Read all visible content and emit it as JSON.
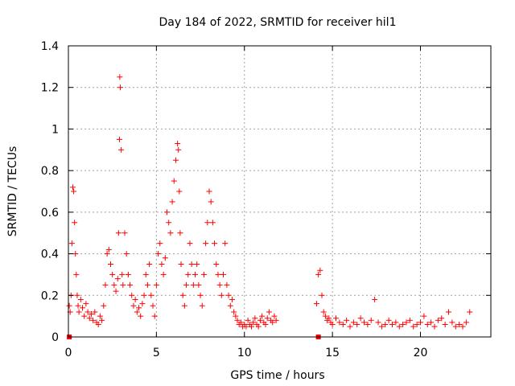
{
  "chart_data": {
    "type": "scatter",
    "title": "Day 184 of 2022, SRMTID for receiver hil1",
    "xlabel": "GPS time / hours",
    "ylabel": "SRMTID / TECUs",
    "xlim": [
      0,
      24
    ],
    "ylim": [
      0,
      1.4
    ],
    "xticks": [
      0,
      5,
      10,
      15,
      20
    ],
    "xtick_labels": [
      "0",
      "5",
      "10",
      "15",
      "20"
    ],
    "yticks": [
      0,
      0.2,
      0.4,
      0.6,
      0.8,
      1.0,
      1.2,
      1.4
    ],
    "ytick_labels": [
      "0",
      "0.2",
      "0.4",
      "0.6",
      "0.8",
      "1",
      "1.2",
      "1.4"
    ],
    "grid": true,
    "marker": "+",
    "color": "#ff0000",
    "series": [
      {
        "name": "SRMTID",
        "x": [
          0.05,
          0.1,
          0.15,
          0.2,
          0.25,
          0.3,
          0.35,
          0.4,
          0.45,
          0.5,
          0.55,
          0.6,
          0.7,
          0.8,
          0.9,
          1.0,
          1.1,
          1.2,
          1.3,
          1.4,
          1.5,
          1.6,
          1.7,
          1.8,
          1.9,
          2.0,
          2.1,
          2.2,
          2.3,
          2.4,
          2.5,
          2.6,
          2.7,
          2.8,
          2.85,
          2.9,
          2.92,
          2.95,
          3.0,
          3.05,
          3.1,
          3.2,
          3.3,
          3.4,
          3.5,
          3.6,
          3.7,
          3.8,
          3.9,
          4.0,
          4.1,
          4.2,
          4.3,
          4.4,
          4.5,
          4.6,
          4.7,
          4.8,
          4.9,
          5.0,
          5.1,
          5.2,
          5.3,
          5.4,
          5.5,
          5.6,
          5.7,
          5.8,
          5.9,
          6.0,
          6.1,
          6.2,
          6.25,
          6.3,
          6.35,
          6.4,
          6.5,
          6.6,
          6.7,
          6.8,
          6.9,
          7.0,
          7.1,
          7.2,
          7.3,
          7.4,
          7.5,
          7.6,
          7.7,
          7.8,
          7.9,
          8.0,
          8.1,
          8.2,
          8.3,
          8.4,
          8.5,
          8.6,
          8.7,
          8.8,
          8.9,
          9.0,
          9.1,
          9.2,
          9.3,
          9.4,
          9.5,
          9.6,
          9.7,
          9.8,
          9.9,
          10.0,
          10.1,
          10.2,
          10.3,
          10.4,
          10.5,
          10.6,
          10.7,
          10.8,
          10.9,
          11.0,
          11.1,
          11.2,
          11.3,
          11.4,
          11.5,
          11.6,
          11.7,
          11.8,
          14.1,
          14.2,
          14.3,
          14.4,
          14.5,
          14.6,
          14.7,
          14.8,
          14.9,
          15.0,
          15.2,
          15.4,
          15.6,
          15.8,
          16.0,
          16.2,
          16.4,
          16.6,
          16.8,
          17.0,
          17.2,
          17.4,
          17.6,
          17.8,
          18.0,
          18.2,
          18.4,
          18.6,
          18.8,
          19.0,
          19.2,
          19.4,
          19.6,
          19.8,
          20.0,
          20.2,
          20.4,
          20.6,
          20.8,
          21.0,
          21.2,
          21.4,
          21.6,
          21.8,
          22.0,
          22.2,
          22.4,
          22.6,
          22.8
        ],
        "y": [
          0.15,
          0.12,
          0.2,
          0.45,
          0.72,
          0.7,
          0.55,
          0.4,
          0.3,
          0.2,
          0.15,
          0.12,
          0.18,
          0.14,
          0.1,
          0.16,
          0.12,
          0.09,
          0.11,
          0.08,
          0.12,
          0.07,
          0.06,
          0.1,
          0.08,
          0.15,
          0.25,
          0.4,
          0.42,
          0.35,
          0.3,
          0.25,
          0.22,
          0.28,
          0.5,
          0.95,
          1.25,
          1.2,
          0.9,
          0.3,
          0.25,
          0.5,
          0.4,
          0.3,
          0.25,
          0.2,
          0.15,
          0.18,
          0.12,
          0.14,
          0.1,
          0.16,
          0.2,
          0.3,
          0.25,
          0.35,
          0.2,
          0.15,
          0.1,
          0.25,
          0.4,
          0.45,
          0.35,
          0.3,
          0.38,
          0.6,
          0.55,
          0.5,
          0.65,
          0.75,
          0.85,
          0.93,
          0.9,
          0.7,
          0.5,
          0.35,
          0.2,
          0.15,
          0.25,
          0.3,
          0.45,
          0.35,
          0.25,
          0.3,
          0.35,
          0.25,
          0.2,
          0.15,
          0.3,
          0.45,
          0.55,
          0.7,
          0.65,
          0.55,
          0.45,
          0.35,
          0.3,
          0.25,
          0.2,
          0.3,
          0.45,
          0.25,
          0.2,
          0.15,
          0.18,
          0.12,
          0.1,
          0.08,
          0.06,
          0.07,
          0.05,
          0.06,
          0.05,
          0.08,
          0.06,
          0.05,
          0.07,
          0.09,
          0.06,
          0.05,
          0.08,
          0.1,
          0.07,
          0.06,
          0.09,
          0.12,
          0.08,
          0.07,
          0.1,
          0.08,
          0.16,
          0.3,
          0.32,
          0.2,
          0.12,
          0.1,
          0.08,
          0.09,
          0.07,
          0.06,
          0.09,
          0.07,
          0.06,
          0.08,
          0.05,
          0.07,
          0.06,
          0.09,
          0.07,
          0.06,
          0.08,
          0.18,
          0.07,
          0.05,
          0.06,
          0.08,
          0.06,
          0.07,
          0.05,
          0.06,
          0.07,
          0.08,
          0.05,
          0.06,
          0.07,
          0.1,
          0.06,
          0.07,
          0.05,
          0.08,
          0.09,
          0.06,
          0.12,
          0.07,
          0.05,
          0.06,
          0.05,
          0.07,
          0.12
        ]
      }
    ],
    "outliers": [
      {
        "x": 0.05,
        "y": 0.0
      },
      {
        "x": 14.2,
        "y": 0.0
      }
    ]
  }
}
